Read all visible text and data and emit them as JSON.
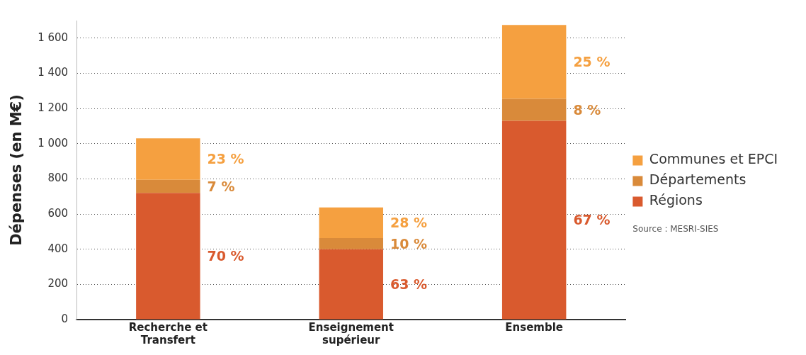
{
  "chart_data": {
    "type": "bar",
    "stacked": true,
    "ylabel": "Dépenses (en M€)",
    "categories": [
      "Recherche et Transfert",
      "Enseignement supérieur",
      "Ensemble"
    ],
    "series": [
      {
        "name": "Régions",
        "color": "#d95a2e",
        "values": [
          720,
          400,
          1130
        ]
      },
      {
        "name": "Départements",
        "color": "#d98a3a",
        "values": [
          75,
          63,
          125
        ]
      },
      {
        "name": "Communes et EPCI",
        "color": "#f5a040",
        "values": [
          235,
          175,
          420
        ]
      }
    ],
    "ylim": [
      0,
      1700
    ],
    "yticks": [
      0,
      200,
      400,
      600,
      800,
      {
        "value": 1000,
        "label": "1 000"
      },
      {
        "value": 1200,
        "label": "1 200"
      },
      {
        "value": 1400,
        "label": "1 400"
      },
      {
        "value": 1600,
        "label": "1 600"
      }
    ],
    "grid": "y",
    "legend": "right",
    "annotations": [
      "70 %",
      "7 %",
      "23 %",
      "63 %",
      "10 %",
      "28 %",
      "67 %",
      "8 %",
      "25 %",
      "Source : MESRI-SIES"
    ]
  }
}
